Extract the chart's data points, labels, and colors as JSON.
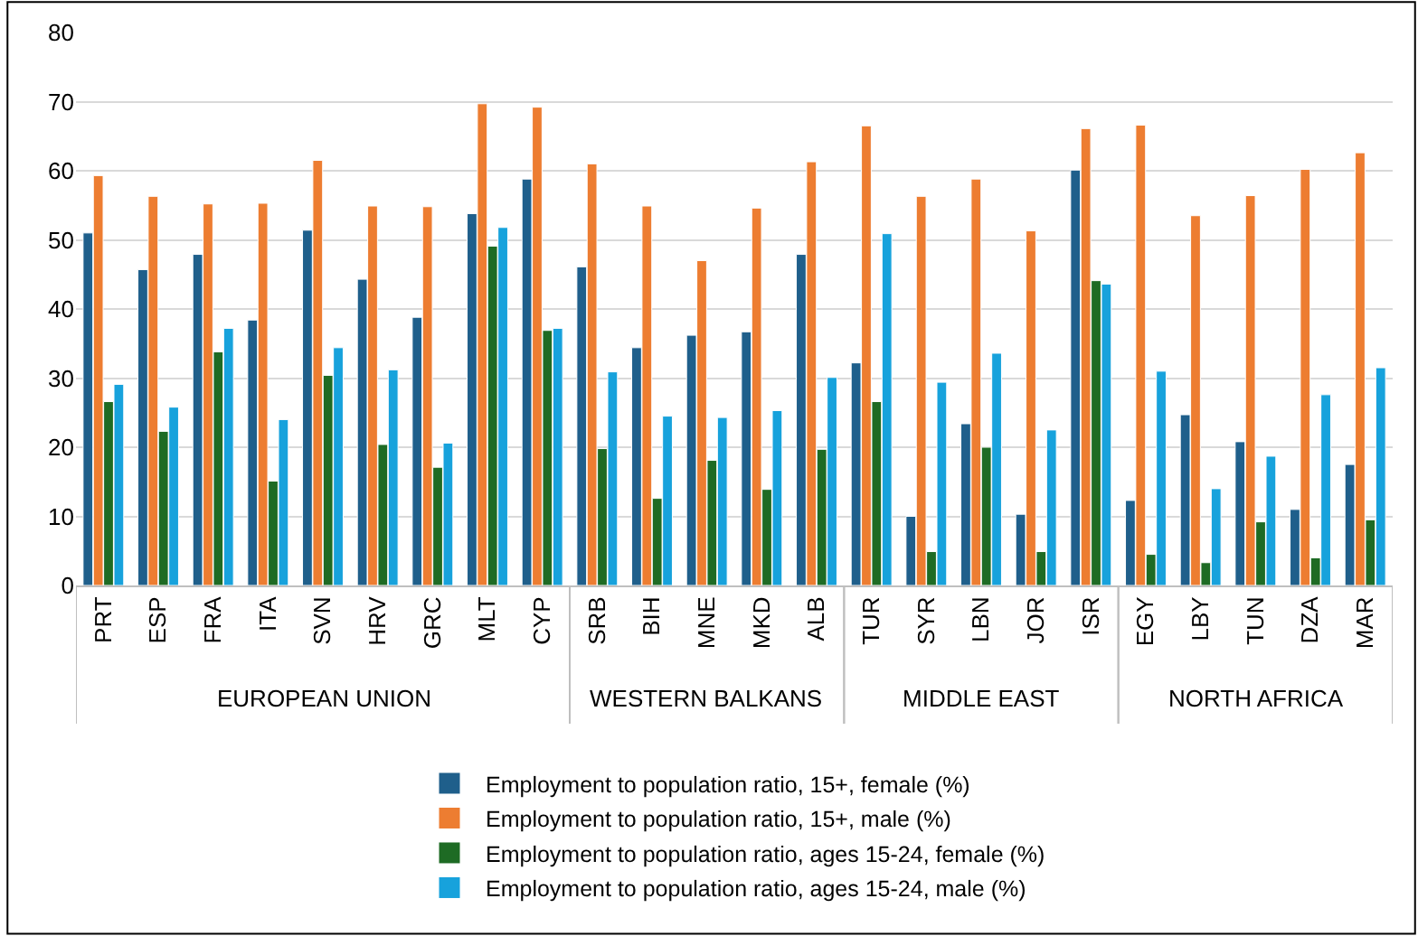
{
  "chart_data": {
    "type": "bar",
    "categories": [
      "PRT",
      "ESP",
      "FRA",
      "ITA",
      "SVN",
      "HRV",
      "GRC",
      "MLT",
      "CYP",
      "SRB",
      "BIH",
      "MNE",
      "MKD",
      "ALB",
      "TUR",
      "SYR",
      "LBN",
      "JOR",
      "ISR",
      "EGY",
      "LBY",
      "TUN",
      "DZA",
      "MAR"
    ],
    "series": [
      {
        "name": "Employment to population ratio, 15+, female (%)",
        "color": "#1f5f8b",
        "values": [
          51,
          45.7,
          47.9,
          38.4,
          51.4,
          44.3,
          38.8,
          53.8,
          58.8,
          46.1,
          34.4,
          36.2,
          36.7,
          47.9,
          32.2,
          10,
          23.4,
          10.3,
          60.1,
          12.3,
          24.7,
          20.8,
          11,
          17.5
        ]
      },
      {
        "name": "Employment to population ratio, 15+, male (%)",
        "color": "#ed7d31",
        "values": [
          59.3,
          56.3,
          55.2,
          55.3,
          61.5,
          54.9,
          54.8,
          69.7,
          69.2,
          61,
          54.9,
          47,
          54.6,
          61.3,
          66.5,
          56.3,
          58.8,
          51.3,
          66.1,
          66.6,
          53.5,
          56.4,
          60.2,
          62.6
        ]
      },
      {
        "name": "Employment to population ratio, ages 15-24, female (%)",
        "color": "#1e6b24",
        "values": [
          26.6,
          22.3,
          33.8,
          15.1,
          30.4,
          20.4,
          17.1,
          49.1,
          36.9,
          19.8,
          12.6,
          18.1,
          13.9,
          19.7,
          26.6,
          4.9,
          20,
          4.9,
          44.1,
          4.5,
          3.3,
          9.2,
          4,
          9.5
        ]
      },
      {
        "name": "Employment to population ratio, ages 15-24, male (%)",
        "color": "#17a2dc",
        "values": [
          29.1,
          25.8,
          37.2,
          24,
          34.4,
          31.2,
          20.6,
          51.8,
          37.2,
          30.9,
          24.5,
          24.3,
          25.3,
          30.1,
          50.9,
          29.4,
          33.6,
          22.5,
          43.6,
          31,
          14,
          18.7,
          27.6,
          31.5
        ]
      }
    ],
    "annotations": [
      "EUROPEAN UNION",
      "WESTERN BALKANS",
      "MIDDLE EAST",
      "NORTH AFRICA"
    ],
    "ylim": [
      0,
      80
    ],
    "yticks": [
      0,
      10,
      20,
      30,
      40,
      50,
      60,
      70,
      80
    ],
    "grid": "y",
    "legend": "bottom"
  }
}
